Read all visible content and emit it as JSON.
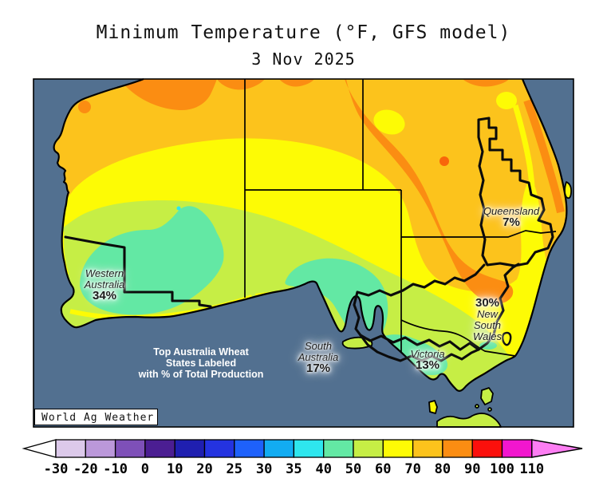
{
  "title": "Minimum Temperature (°F, GFS model)",
  "date": "3 Nov 2025",
  "credit": "World Ag Weather",
  "note": {
    "line1": "Top Australia Wheat",
    "line2": "States Labeled",
    "line3": "with % of Total Production"
  },
  "wheat_states": [
    {
      "name": "Western Australia",
      "line1": "Western",
      "line2": "Australia",
      "share": "34%"
    },
    {
      "name": "South Australia",
      "line1": "South",
      "line2": "Australia",
      "share": "17%"
    },
    {
      "name": "Victoria",
      "line1": "Victoria",
      "share": "13%"
    },
    {
      "name": "New South Wales",
      "line1": "New",
      "line2": "South",
      "line3": "Wales",
      "share": "30%"
    },
    {
      "name": "Queensland",
      "line1": "Queensland",
      "share": "7%"
    }
  ],
  "colorbar": {
    "ticks": [
      "-30",
      "-20",
      "-10",
      "0",
      "10",
      "20",
      "25",
      "30",
      "35",
      "40",
      "50",
      "60",
      "70",
      "80",
      "90",
      "100",
      "110"
    ],
    "segment_colors": [
      "#dcc9ea",
      "#bb98da",
      "#7e50b8",
      "#4b1e92",
      "#1f1fb0",
      "#2433e0",
      "#1e61fb",
      "#12acf2",
      "#2ee6ee",
      "#63e8a4",
      "#c6ee45",
      "#fdfb05",
      "#fcc31c",
      "#fb8d12",
      "#fb100c",
      "#f216ce"
    ],
    "left_arrow_color": "#ffffff",
    "right_arrow_color": "#fd7ef3"
  },
  "map_colors": {
    "ocean": "#527090",
    "band_70_80": "#fcc31c",
    "band_80_90": "#fb8d12",
    "band_60_70": "#fdfb05",
    "band_50_60": "#c6ee45",
    "band_40_50": "#63e8a4",
    "band_35_40": "#2ee6ee",
    "hot_spot": "#f8660a"
  }
}
